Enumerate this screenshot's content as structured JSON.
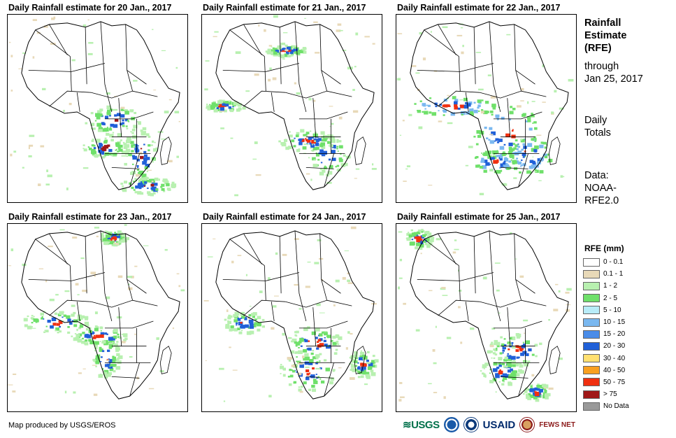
{
  "panels": [
    {
      "title": "Daily Rainfall estimate for 20 Jan., 2017"
    },
    {
      "title": "Daily Rainfall estimate for 21 Jan., 2017"
    },
    {
      "title": "Daily Rainfall estimate for 22 Jan., 2017"
    },
    {
      "title": "Daily Rainfall estimate for 23 Jan., 2017"
    },
    {
      "title": "Daily Rainfall estimate for 24 Jan., 2017"
    },
    {
      "title": "Daily Rainfall estimate for 25 Jan., 2017"
    }
  ],
  "side": {
    "title_line1": "Rainfall",
    "title_line2": "Estimate",
    "title_line3": "(RFE)",
    "through_line1": "through",
    "through_line2": "Jan 25, 2017",
    "daily_line1": "Daily",
    "daily_line2": "Totals",
    "data_line1": "Data:",
    "data_line2": "NOAA-",
    "data_line3": "RFE2.0"
  },
  "legend": {
    "title": "RFE (mm)",
    "items": [
      {
        "label": "0 - 0.1",
        "color": "#ffffff"
      },
      {
        "label": "0.1 - 1",
        "color": "#e8d9b8"
      },
      {
        "label": "1 - 2",
        "color": "#b8f0b0"
      },
      {
        "label": "2 - 5",
        "color": "#6fe06a"
      },
      {
        "label": "5 - 10",
        "color": "#b8ecf8"
      },
      {
        "label": "10 - 15",
        "color": "#7ab8f0"
      },
      {
        "label": "15 - 20",
        "color": "#4a8ce8"
      },
      {
        "label": "20 - 30",
        "color": "#2060d8"
      },
      {
        "label": "30 - 40",
        "color": "#ffe070"
      },
      {
        "label": "40 - 50",
        "color": "#f8a020"
      },
      {
        "label": "50 - 75",
        "color": "#f03010"
      },
      {
        "label": "> 75",
        "color": "#a01818"
      },
      {
        "label": "No Data",
        "color": "#999999"
      }
    ]
  },
  "footer": "Map produced by USGS/EROS",
  "logos": {
    "usgs": "USGS",
    "usaid": "USAID",
    "fews": "FEWS NET",
    "noaa_icon": "noaa-logo-icon",
    "dhs_icon": "seal-icon"
  }
}
